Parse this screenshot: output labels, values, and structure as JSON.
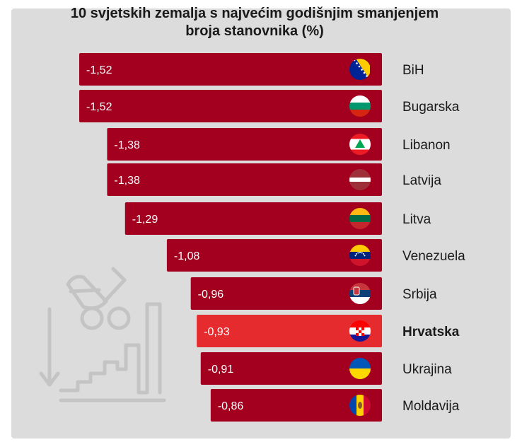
{
  "title_line1": "10 svjetskih zemalja s najvećim godišnjim smanjenjem",
  "title_line2": "broja stanovnika (%)",
  "colors": {
    "bar": "#a3001f",
    "highlight_bar": "#e62b2e",
    "background": "#dcdcdc"
  },
  "chart_data": {
    "type": "bar",
    "orientation": "horizontal",
    "title": "10 svjetskih zemalja s najvećim godišnjim smanjenjem broja stanovnika (%)",
    "categories": [
      "BiH",
      "Bugarska",
      "Libanon",
      "Latvija",
      "Litva",
      "Venezuela",
      "Srbija",
      "Hrvatska",
      "Ukrajina",
      "Moldavija"
    ],
    "values": [
      -1.52,
      -1.52,
      -1.38,
      -1.38,
      -1.29,
      -1.08,
      -0.96,
      -0.93,
      -0.91,
      -0.86
    ],
    "value_labels": [
      "-1,52",
      "-1,52",
      "-1,38",
      "-1,38",
      "-1,29",
      "-1,08",
      "-0,96",
      "-0,93",
      "-0,91",
      "-0,86"
    ],
    "flags": [
      "bosnia-flag-icon",
      "bulgaria-flag-icon",
      "lebanon-flag-icon",
      "latvia-flag-icon",
      "lithuania-flag-icon",
      "venezuela-flag-icon",
      "serbia-flag-icon",
      "croatia-flag-icon",
      "ukraine-flag-icon",
      "moldova-flag-icon"
    ],
    "highlight": "Hrvatska"
  }
}
